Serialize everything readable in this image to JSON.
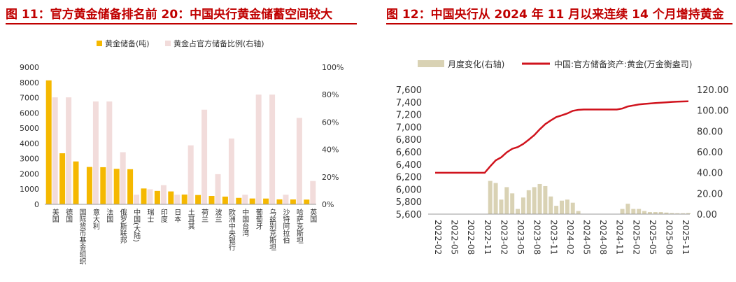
{
  "figure1": {
    "title": "图 11：官方黄金储备排名前 20：中国央行黄金储蓄空间较大",
    "colors": {
      "gold": "#f5b800",
      "ratio": "#f2dcdb"
    },
    "chart_data": {
      "type": "bar",
      "categories": [
        "美国",
        "德国",
        "国际货币基金组织",
        "意大利",
        "法国",
        "俄罗斯联邦",
        "中国(大陆)",
        "瑞士",
        "印度",
        "日本",
        "土耳其",
        "荷兰",
        "波兰",
        "欧洲中央银行",
        "中国台湾",
        "葡萄牙",
        "乌兹别克斯坦",
        "沙特阿拉伯",
        "哈萨克斯坦",
        "英国"
      ],
      "series": [
        {
          "name": "黄金储备(吨)",
          "axis": "left",
          "values": [
            8133,
            3351,
            2814,
            2452,
            2437,
            2330,
            2305,
            1040,
            880,
            846,
            640,
            612,
            550,
            507,
            424,
            383,
            380,
            323,
            320,
            310
          ]
        },
        {
          "name": "黄金占官方储备比例(右轴)",
          "axis": "right",
          "values": [
            78,
            78,
            0,
            75,
            75,
            38,
            7,
            11,
            14,
            7,
            43,
            69,
            22,
            48,
            7,
            80,
            80,
            7,
            63,
            17
          ]
        }
      ],
      "left_axis": {
        "min": 0,
        "max": 9000,
        "ticks": [
          "0",
          "1000",
          "2000",
          "3000",
          "4000",
          "5000",
          "6000",
          "7000",
          "8000",
          "9000"
        ]
      },
      "right_axis": {
        "min": 0,
        "max": 100,
        "ticks": [
          "0%",
          "20%",
          "40%",
          "60%",
          "80%",
          "100%"
        ]
      }
    }
  },
  "figure2": {
    "title": "图 12：中国央行从 2024 年 11 月以来连续 14 个月增持黄金",
    "colors": {
      "bar": "#d9d2b4",
      "line": "#d0131d"
    },
    "chart_data": {
      "type": "bar+line",
      "x_labels": [
        "2022-02",
        "2022-05",
        "2022-08",
        "2022-11",
        "2023-02",
        "2023-05",
        "2023-08",
        "2023-11",
        "2024-02",
        "2024-05",
        "2024-08",
        "2024-11",
        "2025-02",
        "2025-05",
        "2025-08",
        "2025-11"
      ],
      "series": [
        {
          "name": "月度变化(右轴)",
          "type": "bar",
          "axis": "right",
          "start": "2022-02",
          "values": [
            0,
            0,
            0,
            0,
            0,
            0,
            0,
            0,
            0,
            0,
            32,
            30,
            14,
            26,
            20,
            5,
            16,
            23,
            26,
            29,
            27,
            17,
            8,
            13,
            14,
            11,
            3,
            0,
            0,
            0,
            0,
            0,
            0,
            0,
            5,
            10,
            5,
            5,
            3,
            2,
            2,
            2,
            1.5,
            1,
            0.8,
            0.8,
            1
          ]
        },
        {
          "name": "中国:官方储备资产:黄金(万金衡盎司)",
          "type": "line",
          "axis": "left",
          "start": "2022-02",
          "values": [
            6264,
            6264,
            6264,
            6264,
            6264,
            6264,
            6264,
            6264,
            6264,
            6264,
            6367,
            6464,
            6512,
            6592,
            6650,
            6676,
            6727,
            6795,
            6869,
            6962,
            7046,
            7104,
            7158,
            7187,
            7217,
            7258,
            7274,
            7280,
            7280,
            7280,
            7280,
            7280,
            7280,
            7280,
            7296,
            7329,
            7345,
            7361,
            7370,
            7376,
            7383,
            7390,
            7396,
            7402,
            7406,
            7409,
            7412
          ]
        }
      ],
      "left_axis": {
        "min": 5600,
        "max": 7600,
        "ticks": [
          "5,600",
          "5,800",
          "6,000",
          "6,200",
          "6,400",
          "6,600",
          "6,800",
          "7,000",
          "7,200",
          "7,400",
          "7,600"
        ]
      },
      "right_axis": {
        "min": 0,
        "max": 120,
        "ticks": [
          "0.00",
          "20.00",
          "40.00",
          "60.00",
          "80.00",
          "100.00",
          "120.00"
        ]
      }
    }
  }
}
